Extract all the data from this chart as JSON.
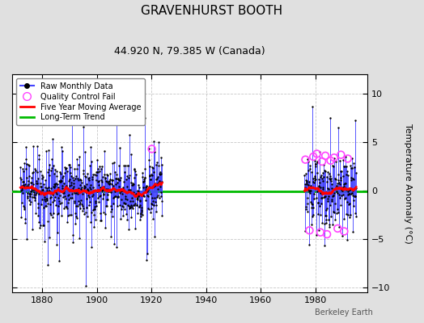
{
  "title": "GRAVENHURST BOOTH",
  "subtitle": "44.920 N, 79.385 W (Canada)",
  "ylabel": "Temperature Anomaly (°C)",
  "credit": "Berkeley Earth",
  "xlim": [
    1869,
    1999
  ],
  "ylim": [
    -10.5,
    12
  ],
  "yticks": [
    -10,
    -5,
    0,
    5,
    10
  ],
  "xticks": [
    1880,
    1900,
    1920,
    1940,
    1960,
    1980
  ],
  "bg_color": "#e0e0e0",
  "plot_bg_color": "#ffffff",
  "grid_color": "#c8c8c8",
  "data_color": "#4444ff",
  "ma_color": "#ff0000",
  "trend_color": "#00bb00",
  "qc_fail_color": "#ff44ff",
  "seg1_start": 1872,
  "seg1_end": 1924,
  "seg2_start": 1976,
  "seg2_end": 1995,
  "title_fontsize": 11,
  "subtitle_fontsize": 9,
  "tick_fontsize": 8,
  "ylabel_fontsize": 8
}
